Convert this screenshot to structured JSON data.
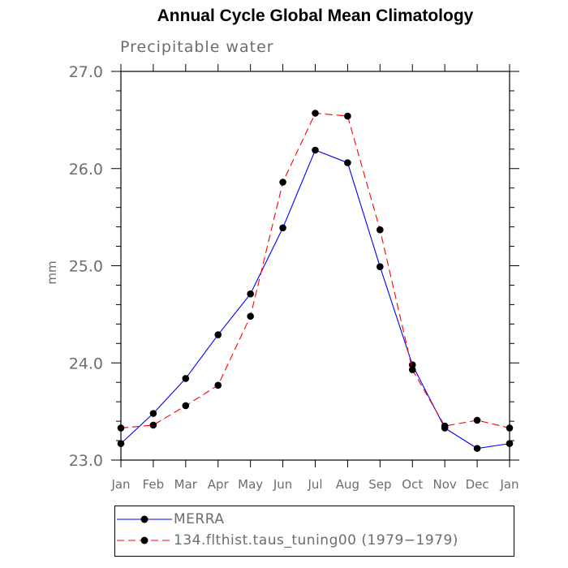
{
  "chart_data": {
    "type": "line",
    "title": "Annual Cycle Global Mean Climatology",
    "subtitle": "Precipitable water",
    "xlabel": "",
    "ylabel": "mm",
    "categories": [
      "Jan",
      "Feb",
      "Mar",
      "Apr",
      "May",
      "Jun",
      "Jul",
      "Aug",
      "Sep",
      "Oct",
      "Nov",
      "Dec",
      "Jan"
    ],
    "ylim": [
      23.0,
      27.0
    ],
    "yticks": [
      "23.0",
      "24.0",
      "25.0",
      "26.0",
      "27.0"
    ],
    "grid": false,
    "legend_position": "bottom",
    "series": [
      {
        "name": "MERRA",
        "color": "#0000ff",
        "line_style": "solid",
        "marker": "filled-circle",
        "values": [
          23.17,
          23.48,
          23.84,
          24.29,
          24.71,
          25.39,
          26.19,
          26.06,
          24.99,
          23.98,
          23.33,
          23.12,
          23.17
        ]
      },
      {
        "name": "134.flthist.taus_tuning00 (1979−1979)",
        "color": "#ff0000",
        "line_style": "dashed",
        "marker": "filled-circle",
        "values": [
          23.33,
          23.36,
          23.56,
          23.77,
          24.48,
          25.86,
          26.57,
          26.54,
          25.37,
          23.93,
          23.35,
          23.41,
          23.33
        ]
      }
    ]
  }
}
